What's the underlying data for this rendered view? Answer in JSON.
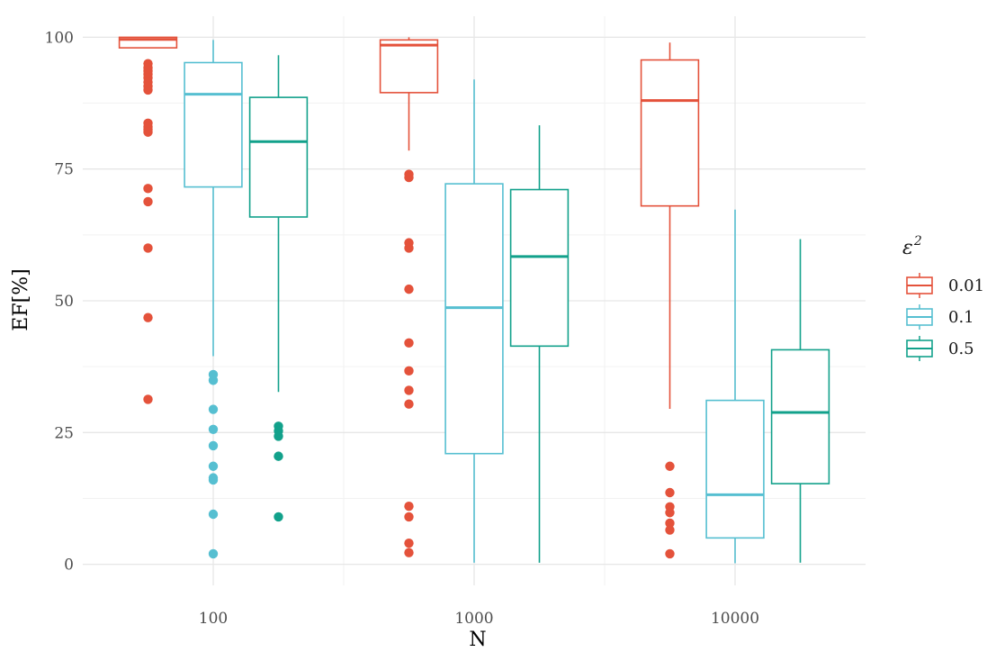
{
  "chart_data": {
    "type": "box",
    "xlabel": "N",
    "ylabel": "EF[%]",
    "ylim": [
      -4,
      104
    ],
    "yticks": [
      0,
      25,
      50,
      75,
      100
    ],
    "grid": true,
    "legend_position": "right",
    "legend_title": "ε",
    "legend_title_superscript": "2",
    "colors": {
      "0.01": "#e4523b",
      "0.1": "#56bfd1",
      "0.5": "#12a18b"
    },
    "categories": [
      "100",
      "1000",
      "10000"
    ],
    "series": [
      {
        "name": "0.01",
        "color": "#e4523b",
        "boxes": [
          {
            "category": "100",
            "lower_whisker": 98,
            "q1": 98,
            "median": 99.6,
            "q3": 100,
            "upper_whisker": 100,
            "outliers": [
              95,
              94.2,
              93.6,
              93,
              92.3,
              91.5,
              90.7,
              90,
              83.7,
              83,
              82.5,
              82,
              71.3,
              68.8,
              60,
              46.8,
              31.3
            ]
          },
          {
            "category": "1000",
            "lower_whisker": 78.5,
            "q1": 89.5,
            "median": 98.5,
            "q3": 99.5,
            "upper_whisker": 100,
            "outliers": [
              74,
              73.4,
              61,
              60,
              52.2,
              42,
              36.7,
              33,
              30.4,
              11,
              9,
              4,
              2.2
            ]
          },
          {
            "category": "10000",
            "lower_whisker": 29.5,
            "q1": 68,
            "median": 88,
            "q3": 95.7,
            "upper_whisker": 99,
            "outliers": [
              18.6,
              13.6,
              10.9,
              9.8,
              7.8,
              6.5,
              2
            ]
          }
        ]
      },
      {
        "name": "0.1",
        "color": "#56bfd1",
        "boxes": [
          {
            "category": "100",
            "lower_whisker": 39.5,
            "q1": 71.6,
            "median": 89.2,
            "q3": 95.2,
            "upper_whisker": 99.5,
            "outliers": [
              36,
              34.9,
              29.4,
              25.6,
              22.5,
              18.6,
              16.4,
              16,
              9.5,
              2
            ]
          },
          {
            "category": "1000",
            "lower_whisker": 0.3,
            "q1": 21,
            "median": 48.7,
            "q3": 72.2,
            "upper_whisker": 92,
            "outliers": []
          },
          {
            "category": "10000",
            "lower_whisker": 0.2,
            "q1": 5,
            "median": 13.2,
            "q3": 31.1,
            "upper_whisker": 67.3,
            "outliers": []
          }
        ]
      },
      {
        "name": "0.5",
        "color": "#12a18b",
        "boxes": [
          {
            "category": "100",
            "lower_whisker": 32.7,
            "q1": 65.9,
            "median": 80.2,
            "q3": 88.6,
            "upper_whisker": 96.6,
            "outliers": [
              26.2,
              25.3,
              24.3,
              20.5,
              9
            ]
          },
          {
            "category": "1000",
            "lower_whisker": 0.3,
            "q1": 41.4,
            "median": 58.4,
            "q3": 71.1,
            "upper_whisker": 83.3,
            "outliers": []
          },
          {
            "category": "10000",
            "lower_whisker": 0.3,
            "q1": 15.3,
            "median": 28.8,
            "q3": 40.7,
            "upper_whisker": 61.7,
            "outliers": []
          }
        ]
      }
    ]
  }
}
